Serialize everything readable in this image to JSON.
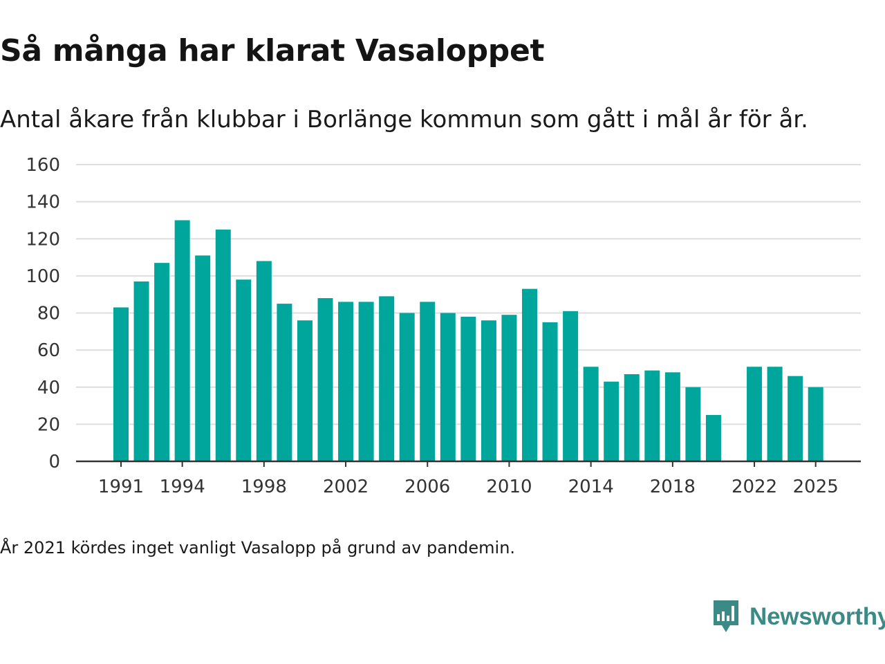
{
  "title": "Så många har klarat Vasaloppet",
  "subtitle": "Antal åkare från klubbar i Borlänge kommun som gått i mål år för år.",
  "footnote": "År 2021 kördes inget vanligt Vasalopp på grund av pandemin.",
  "brand": {
    "name": "Newsworthy",
    "icon": "newsworthy-logo-icon",
    "color": "#3c8a85"
  },
  "colors": {
    "bar": "#00a59b",
    "grid": "#dedede",
    "axis": "#333333"
  },
  "chart_data": {
    "type": "bar",
    "title": "Så många har klarat Vasaloppet",
    "subtitle": "Antal åkare från klubbar i Borlänge kommun som gått i mål år för år.",
    "xlabel": "",
    "ylabel": "",
    "ylim": [
      0,
      160
    ],
    "yticks": [
      0,
      20,
      40,
      60,
      80,
      100,
      120,
      140,
      160
    ],
    "xticks": [
      1991,
      1994,
      1998,
      2002,
      2006,
      2010,
      2014,
      2018,
      2022,
      2025
    ],
    "grid": true,
    "legend": "none",
    "x": [
      1991,
      1992,
      1993,
      1994,
      1995,
      1996,
      1997,
      1998,
      1999,
      2000,
      2001,
      2002,
      2003,
      2004,
      2005,
      2006,
      2007,
      2008,
      2009,
      2010,
      2011,
      2012,
      2013,
      2014,
      2015,
      2016,
      2017,
      2018,
      2019,
      2020,
      2022,
      2023,
      2024,
      2025
    ],
    "values": [
      83,
      97,
      107,
      130,
      111,
      125,
      98,
      108,
      85,
      76,
      88,
      86,
      86,
      89,
      80,
      86,
      80,
      78,
      76,
      79,
      93,
      75,
      81,
      51,
      43,
      47,
      49,
      48,
      40,
      25,
      51,
      51,
      46,
      40
    ]
  }
}
